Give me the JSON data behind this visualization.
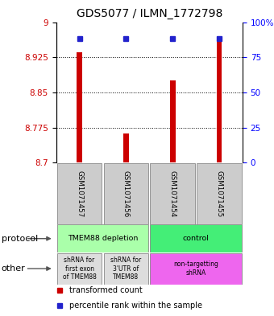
{
  "title": "GDS5077 / ILMN_1772798",
  "samples": [
    "GSM1071457",
    "GSM1071456",
    "GSM1071454",
    "GSM1071455"
  ],
  "red_values": [
    8.935,
    8.762,
    8.875,
    8.958
  ],
  "blue_values": [
    88,
    88,
    88,
    88
  ],
  "y_min": 8.7,
  "y_max": 9.0,
  "y_ticks": [
    8.7,
    8.775,
    8.85,
    8.925,
    9.0
  ],
  "y_tick_labels": [
    "8.7",
    "8.775",
    "8.85",
    "8.925",
    "9"
  ],
  "y_right_ticks": [
    0,
    25,
    50,
    75,
    100
  ],
  "y_right_labels": [
    "0",
    "25",
    "50",
    "75",
    "100%"
  ],
  "bar_color": "#cc0000",
  "square_color": "#2222cc",
  "protocol_labels": [
    "TMEM88 depletion",
    "control"
  ],
  "protocol_colors": [
    "#aaffaa",
    "#44ee77"
  ],
  "other_labels": [
    "shRNA for\nfirst exon\nof TMEM88",
    "shRNA for\n3'UTR of\nTMEM88",
    "non-targetting\nshRNA"
  ],
  "other_colors": [
    "#dddddd",
    "#dddddd",
    "#ee66ee"
  ],
  "label_protocol": "protocol",
  "label_other": "other",
  "legend_red": "transformed count",
  "legend_blue": "percentile rank within the sample",
  "title_fontsize": 10,
  "tick_fontsize": 7.5
}
